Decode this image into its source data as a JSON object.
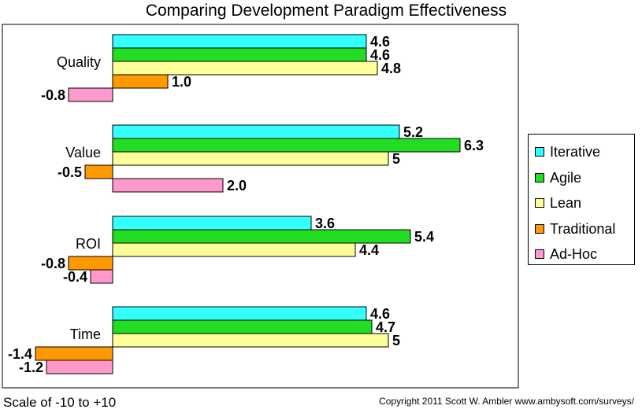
{
  "chart_data": {
    "type": "bar",
    "orientation": "horizontal",
    "title": "Comparing Development Paradigm Effectiveness",
    "categories": [
      "Quality",
      "Value",
      "ROI",
      "Time"
    ],
    "value_labels": [
      [
        "4.6",
        "4.6",
        "4.8",
        "1.0",
        "-0.8"
      ],
      [
        "5.2",
        "6.3",
        "5",
        "-0.5",
        "2.0"
      ],
      [
        "3.6",
        "5.4",
        "4.4",
        "-0.8",
        "-0.4"
      ],
      [
        "4.6",
        "4.7",
        "5",
        "-1.4",
        "-1.2"
      ]
    ],
    "series": [
      {
        "name": "Iterative",
        "color": "#33ffff",
        "values": [
          4.6,
          5.2,
          3.6,
          4.6
        ]
      },
      {
        "name": "Agile",
        "color": "#22dd22",
        "values": [
          4.6,
          6.3,
          5.4,
          4.7
        ]
      },
      {
        "name": "Lean",
        "color": "#ffff99",
        "values": [
          4.8,
          5.0,
          4.4,
          5.0
        ]
      },
      {
        "name": "Traditional",
        "color": "#ff9900",
        "values": [
          1.0,
          -0.5,
          -0.8,
          -1.4
        ]
      },
      {
        "name": "Ad-Hoc",
        "color": "#ff99cc",
        "values": [
          -0.8,
          2.0,
          -0.4,
          -1.2
        ]
      }
    ],
    "xlim": [
      -10,
      10
    ],
    "grid": false,
    "legend_position": "right"
  },
  "footer": {
    "scale_note": "Scale of -10 to +10",
    "copyright": "Copyright 2011 Scott W. Ambler  www.ambysoft.com/surveys/"
  }
}
